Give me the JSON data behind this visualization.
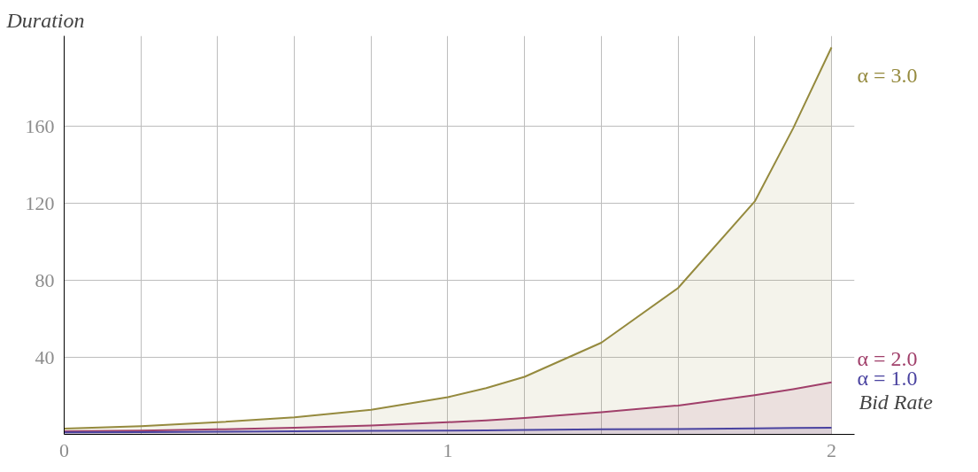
{
  "chart_data": {
    "type": "area",
    "xlabel": "Bid Rate",
    "ylabel": "Duration",
    "xlim": [
      0,
      2.06
    ],
    "ylim": [
      0,
      207
    ],
    "xticks": [
      0,
      {
        "value": 0.2,
        "label": null
      },
      {
        "value": 0.4,
        "label": null
      },
      {
        "value": 0.6,
        "label": null
      },
      {
        "value": 0.8,
        "label": null
      },
      1,
      {
        "value": 1.2,
        "label": null
      },
      {
        "value": 1.4,
        "label": null
      },
      {
        "value": 1.6,
        "label": null
      },
      {
        "value": 1.8,
        "label": null
      },
      2
    ],
    "yticks": [
      40,
      80,
      120,
      160
    ],
    "grid": true,
    "x": [
      0,
      0.2,
      0.4,
      0.6,
      0.8,
      1.0,
      1.1,
      1.2,
      1.4,
      1.6,
      1.8,
      1.9,
      2.0
    ],
    "series": [
      {
        "name": "α = 3.0",
        "color": "#958a3e",
        "values": [
          3,
          4.3,
          6.3,
          8.8,
          12.8,
          19.3,
          24,
          29.9,
          47.6,
          76,
          121,
          159,
          201
        ]
      },
      {
        "name": "α = 2.0",
        "color": "#a03f6a",
        "values": [
          1.6,
          2.0,
          2.6,
          3.4,
          4.6,
          6.3,
          7.3,
          8.5,
          11.5,
          15,
          20.4,
          23.5,
          27
        ]
      },
      {
        "name": "α = 1.0",
        "color": "#4a43a0",
        "values": [
          1.0,
          1.2,
          1.4,
          1.6,
          1.8,
          2.0,
          2.1,
          2.3,
          2.6,
          2.8,
          3.1,
          3.3,
          3.5
        ]
      }
    ]
  }
}
